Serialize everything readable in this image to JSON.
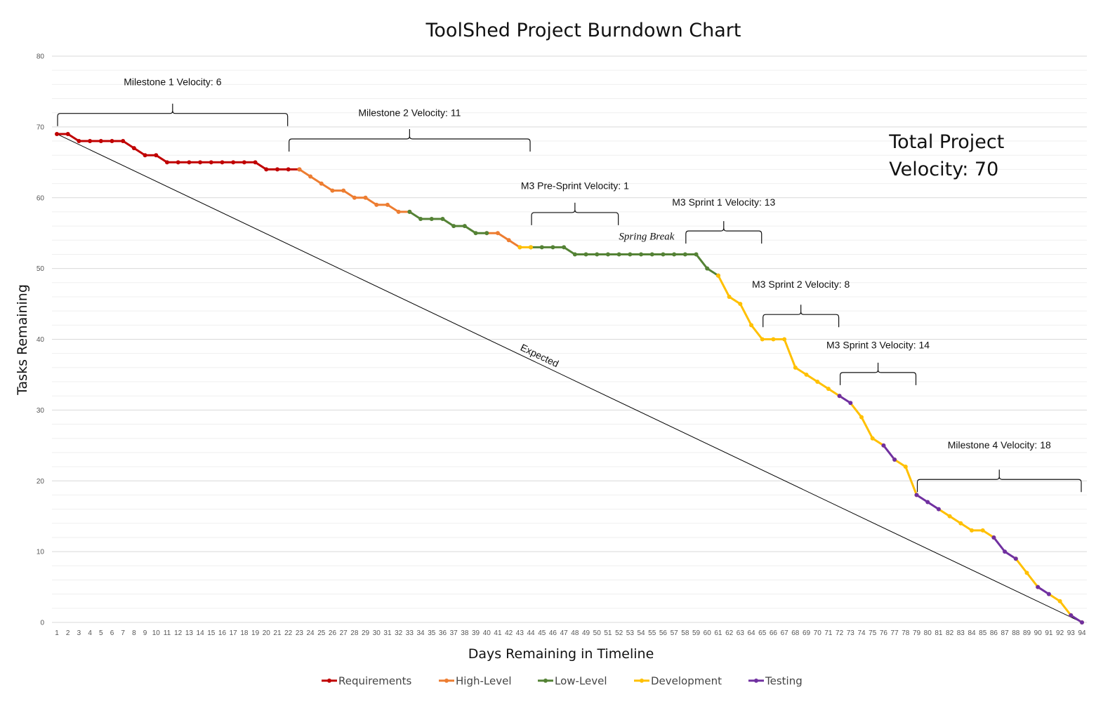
{
  "chart_data": {
    "type": "line",
    "title": "ToolShed Project Burndown Chart",
    "xlabel": "Days Remaining in Timeline",
    "ylabel": "Tasks Remaining",
    "x_range": [
      1,
      94
    ],
    "ylim": [
      0,
      80
    ],
    "y_ticks": [
      0,
      10,
      20,
      30,
      40,
      50,
      60,
      70,
      80
    ],
    "y_minor_step": 2,
    "grid": true,
    "legend_position": "bottom",
    "categories": [
      1,
      2,
      3,
      4,
      5,
      6,
      7,
      8,
      9,
      10,
      11,
      12,
      13,
      14,
      15,
      16,
      17,
      18,
      19,
      20,
      21,
      22,
      23,
      24,
      25,
      26,
      27,
      28,
      29,
      30,
      31,
      32,
      33,
      34,
      35,
      36,
      37,
      38,
      39,
      40,
      41,
      42,
      43,
      44,
      45,
      46,
      47,
      48,
      49,
      50,
      51,
      52,
      53,
      54,
      55,
      56,
      57,
      58,
      59,
      60,
      61,
      62,
      63,
      64,
      65,
      66,
      67,
      68,
      69,
      70,
      71,
      72,
      73,
      74,
      75,
      76,
      77,
      78,
      79,
      80,
      81,
      82,
      83,
      84,
      85,
      86,
      87,
      88,
      89,
      90,
      91,
      92,
      93,
      94
    ],
    "series": [
      {
        "name": "Requirements",
        "color": "#c00000",
        "points": [
          [
            1,
            69
          ],
          [
            2,
            69
          ],
          [
            3,
            68
          ],
          [
            4,
            68
          ],
          [
            5,
            68
          ],
          [
            6,
            68
          ],
          [
            7,
            68
          ],
          [
            8,
            67
          ],
          [
            9,
            66
          ],
          [
            10,
            66
          ],
          [
            11,
            65
          ],
          [
            12,
            65
          ],
          [
            13,
            65
          ],
          [
            14,
            65
          ],
          [
            15,
            65
          ],
          [
            16,
            65
          ],
          [
            17,
            65
          ],
          [
            18,
            65
          ],
          [
            19,
            65
          ],
          [
            20,
            64
          ],
          [
            21,
            64
          ],
          [
            22,
            64
          ],
          [
            23,
            64
          ]
        ]
      },
      {
        "name": "High-Level",
        "color": "#ed7d31",
        "points": [
          [
            23,
            64
          ],
          [
            24,
            63
          ],
          [
            25,
            62
          ],
          [
            26,
            61
          ],
          [
            27,
            61
          ],
          [
            28,
            60
          ],
          [
            29,
            60
          ],
          [
            30,
            59
          ],
          [
            31,
            59
          ],
          [
            32,
            58
          ],
          [
            33,
            58
          ],
          [
            40,
            55
          ],
          [
            41,
            55
          ],
          [
            42,
            54
          ],
          [
            43,
            53
          ]
        ]
      },
      {
        "name": "Low-Level",
        "color": "#548235",
        "points": [
          [
            33,
            58
          ],
          [
            34,
            57
          ],
          [
            35,
            57
          ],
          [
            36,
            57
          ],
          [
            37,
            56
          ],
          [
            38,
            56
          ],
          [
            39,
            55
          ],
          [
            40,
            55
          ],
          [
            44,
            53
          ],
          [
            45,
            53
          ],
          [
            46,
            53
          ],
          [
            47,
            53
          ],
          [
            48,
            52
          ],
          [
            49,
            52
          ],
          [
            50,
            52
          ],
          [
            51,
            52
          ],
          [
            52,
            52
          ],
          [
            53,
            52
          ],
          [
            54,
            52
          ],
          [
            55,
            52
          ],
          [
            56,
            52
          ],
          [
            57,
            52
          ],
          [
            58,
            52
          ],
          [
            59,
            52
          ],
          [
            60,
            50
          ],
          [
            61,
            49
          ]
        ]
      },
      {
        "name": "Development",
        "color": "#ffc000",
        "points": [
          [
            43,
            53
          ],
          [
            44,
            53
          ],
          [
            61,
            49
          ],
          [
            62,
            46
          ],
          [
            63,
            45
          ],
          [
            64,
            42
          ],
          [
            65,
            40
          ],
          [
            66,
            40
          ],
          [
            67,
            40
          ],
          [
            68,
            36
          ],
          [
            69,
            35
          ],
          [
            70,
            34
          ],
          [
            71,
            33
          ],
          [
            72,
            32
          ],
          [
            74,
            29
          ],
          [
            75,
            26
          ],
          [
            76,
            25
          ],
          [
            77,
            23
          ],
          [
            78,
            22
          ],
          [
            79,
            18
          ],
          [
            82,
            15
          ],
          [
            83,
            14
          ],
          [
            84,
            13
          ],
          [
            85,
            13
          ],
          [
            86,
            12
          ],
          [
            88,
            9
          ],
          [
            89,
            7
          ],
          [
            90,
            5
          ],
          [
            92,
            3
          ],
          [
            93,
            1
          ],
          [
            94,
            0
          ]
        ]
      },
      {
        "name": "Testing",
        "color": "#7030a0",
        "points": [
          [
            72,
            32
          ],
          [
            73,
            31
          ],
          [
            76,
            25
          ],
          [
            77,
            23
          ],
          [
            79,
            18
          ],
          [
            80,
            17
          ],
          [
            81,
            16
          ],
          [
            86,
            12
          ],
          [
            87,
            10
          ],
          [
            88,
            9
          ],
          [
            90,
            5
          ],
          [
            91,
            4
          ],
          [
            93,
            1
          ],
          [
            94,
            0
          ]
        ]
      }
    ],
    "line_segments": [
      {
        "series": "Requirements",
        "from": 1,
        "to": 23
      },
      {
        "series": "High-Level",
        "from": 23,
        "to": 33
      },
      {
        "series": "Low-Level",
        "from": 33,
        "to": 40
      },
      {
        "series": "High-Level",
        "from": 40,
        "to": 43
      },
      {
        "series": "Development",
        "from": 43,
        "to": 44
      },
      {
        "series": "Low-Level",
        "from": 44,
        "to": 61
      },
      {
        "series": "Development",
        "from": 61,
        "to": 72
      },
      {
        "series": "Testing",
        "from": 72,
        "to": 73
      },
      {
        "series": "Development",
        "from": 73,
        "to": 76
      },
      {
        "series": "Testing",
        "from": 76,
        "to": 77
      },
      {
        "series": "Development",
        "from": 77,
        "to": 79
      },
      {
        "series": "Testing",
        "from": 79,
        "to": 81
      },
      {
        "series": "Development",
        "from": 81,
        "to": 86
      },
      {
        "series": "Testing",
        "from": 86,
        "to": 88
      },
      {
        "series": "Development",
        "from": 88,
        "to": 90
      },
      {
        "series": "Testing",
        "from": 90,
        "to": 91
      },
      {
        "series": "Development",
        "from": 91,
        "to": 93
      },
      {
        "series": "Testing",
        "from": 93,
        "to": 94
      }
    ],
    "expected_line": {
      "label": "Expected",
      "from": [
        1,
        69
      ],
      "to": [
        94,
        0
      ]
    },
    "annotations": [
      {
        "text": "Milestone 1 Velocity: 6",
        "x_from": 1,
        "x_to": 22,
        "y": 71.9,
        "label_y": 75.9
      },
      {
        "text": "Milestone 2 Velocity: 11",
        "x_from": 22,
        "x_to": 44,
        "y": 68.3,
        "label_y": 71.5
      },
      {
        "text": "M3 Pre-Sprint Velocity: 1",
        "x_from": 44,
        "x_to": 52,
        "y": 57.9,
        "label_y": 61.2
      },
      {
        "text": "M3 Sprint 1 Velocity: 13",
        "x_from": 58,
        "x_to": 65,
        "y": 55.3,
        "label_y": 58.9
      },
      {
        "text": "M3 Sprint 2 Velocity: 8",
        "x_from": 65,
        "x_to": 72,
        "y": 43.5,
        "label_y": 47.3
      },
      {
        "text": "M3 Sprint 3 Velocity: 14",
        "x_from": 72,
        "x_to": 79,
        "y": 35.3,
        "label_y": 38.7
      },
      {
        "text": "Milestone 4 Velocity: 18",
        "x_from": 79,
        "x_to": 94,
        "y": 20.2,
        "label_y": 24.6
      }
    ],
    "notes": [
      {
        "text": "Spring Break",
        "x": 54.5,
        "y": 54.1
      },
      {
        "text_lines": [
          "Total Project",
          "Velocity: 70"
        ],
        "x": 76.5,
        "y": 67
      }
    ]
  }
}
